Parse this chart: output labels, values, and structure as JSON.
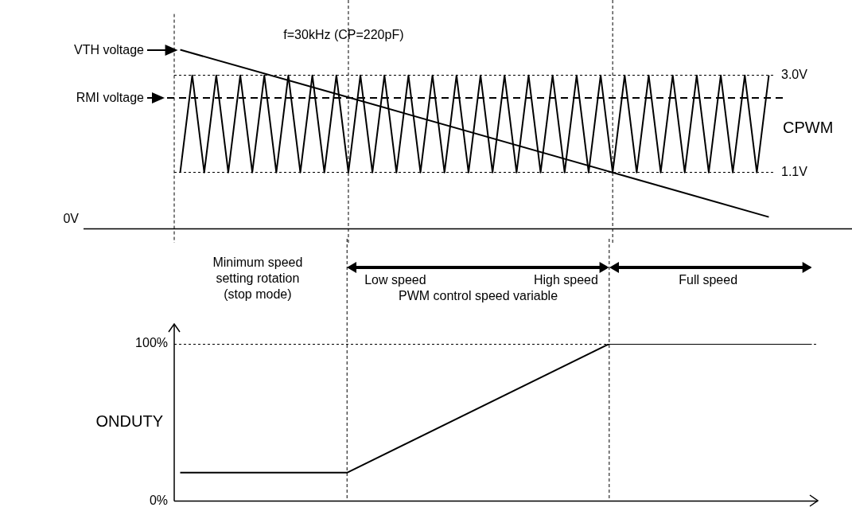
{
  "chart_data": [
    {
      "type": "line",
      "categories": [
        null,
        null,
        null,
        null,
        null,
        null,
        null,
        null,
        null,
        null,
        null,
        null,
        null,
        null,
        null,
        null,
        null,
        null,
        null,
        null,
        null,
        null,
        null,
        null,
        null,
        null,
        null,
        null,
        null,
        null,
        null,
        null,
        null,
        null,
        null,
        null,
        null,
        null,
        null,
        null,
        null,
        null,
        null,
        null,
        null,
        null,
        null,
        null,
        null,
        null
      ],
      "ylim": [
        0,
        4.2
      ],
      "yticks": [
        {
          "value": 1.1,
          "label": "1.1V"
        },
        {
          "value": 3.0,
          "label": "3.0V"
        }
      ],
      "grid": true,
      "marker": "none",
      "annotations": [
        "f=30kHz (CP=220pF)",
        "0V"
      ],
      "ref_lines": [
        {
          "axis": "y",
          "value": 2.56,
          "label": "RMI voltage",
          "line_style": "dashed"
        }
      ],
      "series": [
        {
          "name": "VTH voltage",
          "color": "#000000",
          "values": [
            3.5,
            null,
            null,
            null,
            null,
            null,
            null,
            null,
            null,
            null,
            null,
            null,
            null,
            null,
            2.57,
            null,
            null,
            null,
            null,
            null,
            null,
            null,
            null,
            null,
            null,
            null,
            null,
            null,
            null,
            null,
            null,
            null,
            null,
            null,
            null,
            null,
            1.1,
            null,
            null,
            null,
            null,
            null,
            null,
            null,
            null,
            null,
            null,
            null,
            null,
            0.23
          ]
        },
        {
          "name": "CPWM",
          "color": "#000000",
          "values": [
            1.1,
            3.0,
            1.1,
            3.0,
            1.1,
            3.0,
            1.1,
            3.0,
            1.1,
            3.0,
            1.1,
            3.0,
            1.1,
            3.0,
            1.1,
            3.0,
            1.1,
            3.0,
            1.1,
            3.0,
            1.1,
            3.0,
            1.1,
            3.0,
            1.1,
            3.0,
            1.1,
            3.0,
            1.1,
            3.0,
            1.1,
            3.0,
            1.1,
            3.0,
            1.1,
            3.0,
            1.1,
            3.0,
            1.1,
            3.0,
            1.1,
            3.0,
            1.1,
            3.0,
            1.1,
            3.0,
            1.1,
            3.0,
            1.1,
            3.0
          ]
        }
      ]
    },
    {
      "type": "line",
      "categories": [
        null,
        null,
        null,
        null,
        null,
        null,
        null,
        null,
        null,
        null,
        null,
        null,
        null,
        null,
        null,
        null,
        null,
        null,
        null,
        null,
        null,
        null,
        null,
        null,
        null,
        null,
        null,
        null,
        null,
        null,
        null,
        null,
        null,
        null,
        null,
        null,
        null,
        null,
        null,
        null,
        null,
        null,
        null,
        null,
        null,
        null,
        null,
        null,
        null,
        null,
        null,
        null,
        null,
        null
      ],
      "ylim": [
        0,
        100
      ],
      "yticks": [
        {
          "value": 0,
          "label": "0%"
        },
        {
          "value": 100,
          "label": "100%"
        }
      ],
      "ylabel": "ONDUTY",
      "grid": true,
      "marker": "none",
      "annotations": [
        "Minimum speed\nsetting rotation\n(stop mode)",
        "Low speed",
        "High speed",
        "PWM control speed variable",
        "Full speed"
      ],
      "series": [
        {
          "color": "#000000",
          "values": [
            18,
            null,
            null,
            null,
            null,
            null,
            null,
            null,
            null,
            null,
            null,
            null,
            null,
            null,
            18,
            null,
            null,
            null,
            null,
            null,
            null,
            null,
            null,
            null,
            null,
            null,
            null,
            null,
            null,
            null,
            null,
            null,
            null,
            null,
            null,
            null,
            100,
            null,
            null,
            null,
            null,
            null,
            null,
            null,
            null,
            null,
            null,
            null,
            null,
            null,
            null,
            null,
            null,
            100
          ]
        }
      ]
    }
  ]
}
